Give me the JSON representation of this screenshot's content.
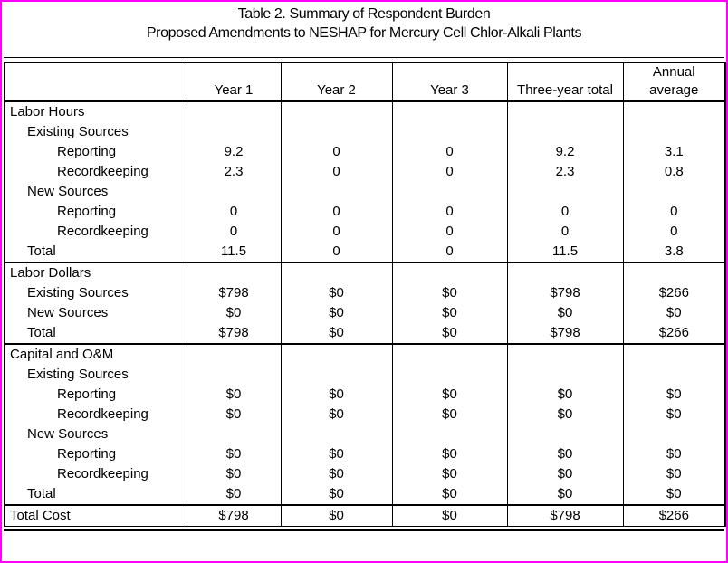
{
  "page": {
    "border_color": "#ff00ff",
    "background_color": "#ffffff"
  },
  "title": {
    "line1": "Table 2. Summary of Respondent Burden",
    "line2": "Proposed Amendments to NESHAP for Mercury Cell Chlor-Alkali Plants"
  },
  "table": {
    "columns": [
      "",
      "Year 1",
      "Year 2",
      "Year 3",
      "Three-year total",
      "Annual\naverage"
    ],
    "sections": [
      {
        "id": "labor-hours",
        "rows": [
          {
            "label": "Labor Hours",
            "indent": 0,
            "values": [
              "",
              "",
              "",
              "",
              ""
            ]
          },
          {
            "label": "Existing Sources",
            "indent": 1,
            "values": [
              "",
              "",
              "",
              "",
              ""
            ]
          },
          {
            "label": "Reporting",
            "indent": 2,
            "values": [
              "9.2",
              "0",
              "0",
              "9.2",
              "3.1"
            ]
          },
          {
            "label": "Recordkeeping",
            "indent": 2,
            "values": [
              "2.3",
              "0",
              "0",
              "2.3",
              "0.8"
            ]
          },
          {
            "label": "New Sources",
            "indent": 1,
            "values": [
              "",
              "",
              "",
              "",
              ""
            ]
          },
          {
            "label": "Reporting",
            "indent": 2,
            "values": [
              "0",
              "0",
              "0",
              "0",
              "0"
            ]
          },
          {
            "label": "Recordkeeping",
            "indent": 2,
            "values": [
              "0",
              "0",
              "0",
              "0",
              "0"
            ]
          },
          {
            "label": "Total",
            "indent": 1,
            "values": [
              "11.5",
              "0",
              "0",
              "11.5",
              "3.8"
            ]
          }
        ]
      },
      {
        "id": "labor-dollars",
        "rows": [
          {
            "label": "Labor Dollars",
            "indent": 0,
            "values": [
              "",
              "",
              "",
              "",
              ""
            ]
          },
          {
            "label": "Existing Sources",
            "indent": 1,
            "values": [
              "$798",
              "$0",
              "$0",
              "$798",
              "$266"
            ]
          },
          {
            "label": "New Sources",
            "indent": 1,
            "values": [
              "$0",
              "$0",
              "$0",
              "$0",
              "$0"
            ]
          },
          {
            "label": "Total",
            "indent": 1,
            "values": [
              "$798",
              "$0",
              "$0",
              "$798",
              "$266"
            ]
          }
        ]
      },
      {
        "id": "capital-and-om",
        "rows": [
          {
            "label": "Capital and O&M",
            "indent": 0,
            "values": [
              "",
              "",
              "",
              "",
              ""
            ]
          },
          {
            "label": "Existing Sources",
            "indent": 1,
            "values": [
              "",
              "",
              "",
              "",
              ""
            ]
          },
          {
            "label": "Reporting",
            "indent": 2,
            "values": [
              "$0",
              "$0",
              "$0",
              "$0",
              "$0"
            ]
          },
          {
            "label": "Recordkeeping",
            "indent": 2,
            "values": [
              "$0",
              "$0",
              "$0",
              "$0",
              "$0"
            ]
          },
          {
            "label": "New Sources",
            "indent": 1,
            "values": [
              "",
              "",
              "",
              "",
              ""
            ]
          },
          {
            "label": "Reporting",
            "indent": 2,
            "values": [
              "$0",
              "$0",
              "$0",
              "$0",
              "$0"
            ]
          },
          {
            "label": "Recordkeeping",
            "indent": 2,
            "values": [
              "$0",
              "$0",
              "$0",
              "$0",
              "$0"
            ]
          },
          {
            "label": "Total",
            "indent": 1,
            "values": [
              "$0",
              "$0",
              "$0",
              "$0",
              "$0"
            ]
          }
        ]
      },
      {
        "id": "total-cost",
        "rows": [
          {
            "label": "Total Cost",
            "indent": 0,
            "values": [
              "$798",
              "$0",
              "$0",
              "$798",
              "$266"
            ]
          }
        ]
      }
    ]
  }
}
